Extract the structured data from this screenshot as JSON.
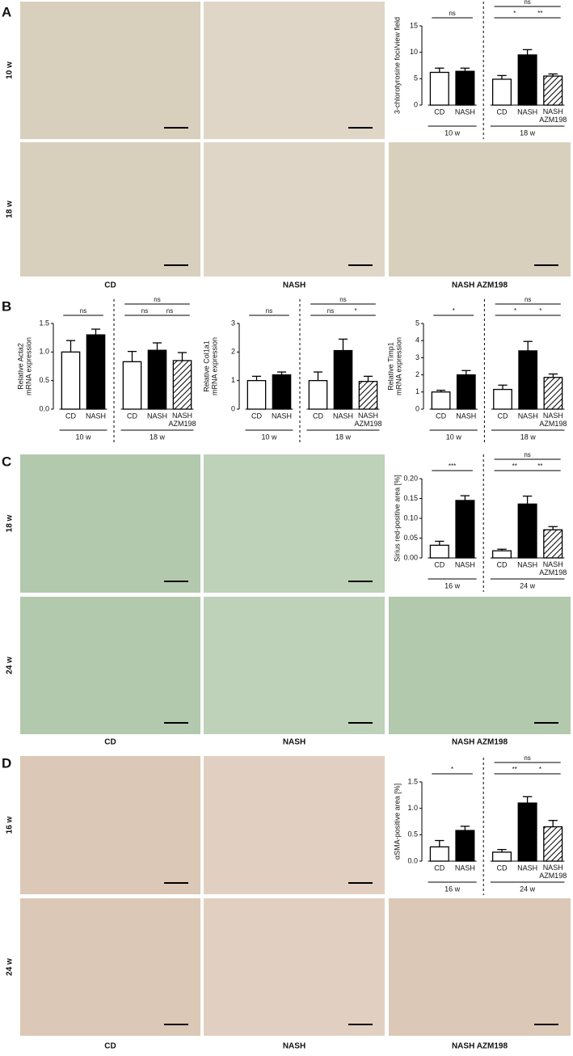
{
  "panels": [
    {
      "letter": "A",
      "rows": [
        "10 w",
        "18 w"
      ],
      "columns": [
        "CD",
        "NASH",
        "NASH AZM198"
      ]
    },
    {
      "letter": "B"
    },
    {
      "letter": "C",
      "rows": [
        "18 w",
        "24 w"
      ],
      "columns": [
        "CD",
        "NASH",
        "NASH AZM198"
      ]
    },
    {
      "letter": "D",
      "rows": [
        "16 w",
        "24 w"
      ],
      "columns": [
        "CD",
        "NASH",
        "NASH AZM198"
      ]
    }
  ],
  "chart_data": [
    {
      "type": "bar",
      "ylabel": [
        "3-chlorotyrosine foci/view field"
      ],
      "ylim": [
        0,
        15
      ],
      "yticks": [
        0,
        5,
        10,
        15
      ],
      "groups": [
        {
          "label": "10 w",
          "categories": [
            "CD",
            "NASH"
          ],
          "values": [
            6.2,
            6.4
          ],
          "errors": [
            0.8,
            0.6
          ],
          "fills": [
            "#ffffff",
            "#000000"
          ],
          "significance": [
            {
              "label": "ns",
              "pair": [
                0,
                1
              ]
            }
          ]
        },
        {
          "label": "18 w",
          "categories": [
            "CD",
            "NASH",
            "NASH AZM198"
          ],
          "values": [
            4.9,
            9.5,
            5.5
          ],
          "errors": [
            0.7,
            1.0,
            0.4
          ],
          "fills": [
            "#ffffff",
            "#000000",
            "hatch"
          ],
          "significance": [
            {
              "label": "*",
              "pair": [
                0,
                1
              ]
            },
            {
              "label": "**",
              "pair": [
                1,
                2
              ]
            },
            {
              "label": "ns",
              "pair": [
                0,
                2
              ]
            }
          ]
        }
      ]
    },
    {
      "type": "bar",
      "ylabel": [
        "Relative Acta2",
        "mRNA expression"
      ],
      "ylim": [
        0,
        1.5
      ],
      "yticks": [
        {
          "value": 0,
          "label": "0.0"
        },
        {
          "value": 0.5,
          "label": "0.5"
        },
        {
          "value": 1,
          "label": "1.0"
        },
        {
          "value": 1.5,
          "label": "1.5"
        }
      ],
      "groups": [
        {
          "label": "10 w",
          "categories": [
            "CD",
            "NASH"
          ],
          "values": [
            1.0,
            1.3
          ],
          "errors": [
            0.2,
            0.1
          ],
          "fills": [
            "#ffffff",
            "#000000"
          ],
          "significance": [
            {
              "label": "ns",
              "pair": [
                0,
                1
              ]
            }
          ]
        },
        {
          "label": "18 w",
          "categories": [
            "CD",
            "NASH",
            "NASH AZM198"
          ],
          "values": [
            0.83,
            1.03,
            0.85
          ],
          "errors": [
            0.18,
            0.13,
            0.14
          ],
          "fills": [
            "#ffffff",
            "#000000",
            "hatch"
          ],
          "significance": [
            {
              "label": "ns",
              "pair": [
                0,
                1
              ]
            },
            {
              "label": "ns",
              "pair": [
                1,
                2
              ]
            },
            {
              "label": "ns",
              "pair": [
                0,
                2
              ]
            }
          ]
        }
      ]
    },
    {
      "type": "bar",
      "ylabel": [
        "Relative Col1a1",
        "mRNA expression"
      ],
      "ylim": [
        0,
        3
      ],
      "yticks": [
        0,
        1,
        2,
        3
      ],
      "groups": [
        {
          "label": "10 w",
          "categories": [
            "CD",
            "NASH"
          ],
          "values": [
            1.0,
            1.2
          ],
          "errors": [
            0.15,
            0.1
          ],
          "fills": [
            "#ffffff",
            "#000000"
          ],
          "significance": [
            {
              "label": "ns",
              "pair": [
                0,
                1
              ]
            }
          ]
        },
        {
          "label": "18 w",
          "categories": [
            "CD",
            "NASH",
            "NASH AZM198"
          ],
          "values": [
            1.0,
            2.05,
            0.97
          ],
          "errors": [
            0.3,
            0.4,
            0.18
          ],
          "fills": [
            "#ffffff",
            "#000000",
            "hatch"
          ],
          "significance": [
            {
              "label": "ns",
              "pair": [
                0,
                1
              ]
            },
            {
              "label": "*",
              "pair": [
                1,
                2
              ]
            },
            {
              "label": "ns",
              "pair": [
                0,
                2
              ]
            }
          ]
        }
      ]
    },
    {
      "type": "bar",
      "ylabel": [
        "Relative Timp1",
        "mRNA expression"
      ],
      "ylim": [
        0,
        5
      ],
      "yticks": [
        0,
        1,
        2,
        3,
        4,
        5
      ],
      "groups": [
        {
          "label": "10 w",
          "categories": [
            "CD",
            "NASH"
          ],
          "values": [
            1.0,
            2.0
          ],
          "errors": [
            0.1,
            0.25
          ],
          "fills": [
            "#ffffff",
            "#000000"
          ],
          "significance": [
            {
              "label": "*",
              "pair": [
                0,
                1
              ]
            }
          ]
        },
        {
          "label": "18 w",
          "categories": [
            "CD",
            "NASH",
            "NASH AZM198"
          ],
          "values": [
            1.15,
            3.4,
            1.85
          ],
          "errors": [
            0.25,
            0.55,
            0.2
          ],
          "fills": [
            "#ffffff",
            "#000000",
            "hatch"
          ],
          "significance": [
            {
              "label": "*",
              "pair": [
                0,
                1
              ]
            },
            {
              "label": "*",
              "pair": [
                1,
                2
              ]
            },
            {
              "label": "ns",
              "pair": [
                0,
                2
              ]
            }
          ]
        }
      ]
    },
    {
      "type": "bar",
      "ylabel": [
        "Sirius red-positive area [%]"
      ],
      "ylim": [
        0,
        0.2
      ],
      "yticks": [
        {
          "value": 0,
          "label": "0.00"
        },
        {
          "value": 0.05,
          "label": "0.05"
        },
        {
          "value": 0.1,
          "label": "0.10"
        },
        {
          "value": 0.15,
          "label": "0.15"
        },
        {
          "value": 0.2,
          "label": "0.20"
        }
      ],
      "groups": [
        {
          "label": "16 w",
          "categories": [
            "CD",
            "NASH"
          ],
          "values": [
            0.032,
            0.145
          ],
          "errors": [
            0.01,
            0.012
          ],
          "fills": [
            "#ffffff",
            "#000000"
          ],
          "significance": [
            {
              "label": "***",
              "pair": [
                0,
                1
              ]
            }
          ]
        },
        {
          "label": "24 w",
          "categories": [
            "CD",
            "NASH",
            "NASH AZM198"
          ],
          "values": [
            0.018,
            0.136,
            0.071
          ],
          "errors": [
            0.004,
            0.02,
            0.008
          ],
          "fills": [
            "#ffffff",
            "#000000",
            "hatch"
          ],
          "significance": [
            {
              "label": "**",
              "pair": [
                0,
                1
              ]
            },
            {
              "label": "**",
              "pair": [
                1,
                2
              ]
            },
            {
              "label": "ns",
              "pair": [
                0,
                2
              ]
            }
          ]
        }
      ]
    },
    {
      "type": "bar",
      "ylabel": [
        "αSMA-positive area [%]"
      ],
      "ylim": [
        0,
        1.5
      ],
      "yticks": [
        {
          "value": 0,
          "label": "0.0"
        },
        {
          "value": 0.5,
          "label": "0.5"
        },
        {
          "value": 1,
          "label": "1.0"
        },
        {
          "value": 1.5,
          "label": "1.5"
        }
      ],
      "groups": [
        {
          "label": "16 w",
          "categories": [
            "CD",
            "NASH"
          ],
          "values": [
            0.27,
            0.58
          ],
          "errors": [
            0.12,
            0.08
          ],
          "fills": [
            "#ffffff",
            "#000000"
          ],
          "significance": [
            {
              "label": "*",
              "pair": [
                0,
                1
              ]
            }
          ]
        },
        {
          "label": "24 w",
          "categories": [
            "CD",
            "NASH",
            "NASH AZM198"
          ],
          "values": [
            0.17,
            1.1,
            0.65
          ],
          "errors": [
            0.05,
            0.12,
            0.12
          ],
          "fills": [
            "#ffffff",
            "#000000",
            "hatch"
          ],
          "significance": [
            {
              "label": "**",
              "pair": [
                0,
                1
              ]
            },
            {
              "label": "*",
              "pair": [
                1,
                2
              ]
            },
            {
              "label": "ns",
              "pair": [
                0,
                2
              ]
            }
          ]
        }
      ]
    }
  ]
}
